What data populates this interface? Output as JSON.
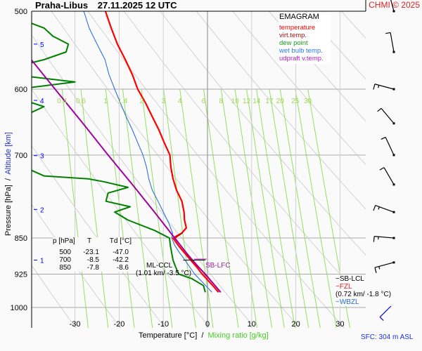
{
  "header": {
    "station": "Praha-Libus",
    "datetime": "27.11.2025 12 UTC",
    "copyright": "CHMI © 2025"
  },
  "legend": {
    "title": "EMAGRAM",
    "items": [
      {
        "label": "temperature",
        "color": "#ff0000"
      },
      {
        "label": "virt.temp.",
        "color": "#a01010"
      },
      {
        "label": "dew point",
        "color": "#008000"
      },
      {
        "label": "wet bulb temp.",
        "color": "#1e64dc"
      },
      {
        "label": "udpraft v.temp.",
        "color": "#a000a0"
      }
    ]
  },
  "colors": {
    "temperature": "#ff0000",
    "virt_temp": "#a01010",
    "dew_point": "#008000",
    "wet_bulb": "#1e64dc",
    "updraft": "#a000a0",
    "mixing_ratio": "#90e060",
    "altitude": "#0000ff",
    "grid": "#b4b4b4",
    "dry_adiabat": "#d2d2d2"
  },
  "table": {
    "headers": [
      "p [hPa]",
      "T",
      "Td [°C]"
    ],
    "rows": [
      [
        "500",
        "-23.1",
        "-47.0"
      ],
      [
        "700",
        "-8.5",
        "-42.2"
      ],
      [
        "850",
        "-7.8",
        "-8.6"
      ]
    ]
  },
  "annotations": {
    "ml_ccl": "ML-CCL",
    "ml_ccl_value": "(1.01 km/ -3.5 °C)",
    "sb_lfc": "SB-LFC",
    "sb_lcl": "SB-LCL",
    "fzl": "FZL",
    "fzl_value": "(0.72 km/ -1.8 °C)",
    "wbzl": "WBZL",
    "sfc": "SFC: 304 m ASL"
  },
  "chart_data": {
    "type": "line",
    "title": "Praha-Libus 27.11.2025 12 UTC",
    "subtitle": "EMAGRAM",
    "xlabel": "Temperature [°C]",
    "xlabel2": "Mixing ratio [g/kg]",
    "ylabel": "Pressure [hPa]",
    "ylabel2": "Altitude [km]",
    "xlim": [
      -40,
      35
    ],
    "ylim": [
      1050,
      500
    ],
    "x_ticks": [
      -30,
      -20,
      -10,
      0,
      10,
      20,
      30
    ],
    "y_ticks": [
      500,
      600,
      700,
      850,
      925,
      1000
    ],
    "altitude_ticks": [
      {
        "km": 1,
        "p": 895
      },
      {
        "km": 2,
        "p": 795
      },
      {
        "km": 3,
        "p": 701
      },
      {
        "km": 4,
        "p": 616
      },
      {
        "km": 5,
        "p": 540
      }
    ],
    "mixing_ratio_labels": [
      "0.4",
      "0.6",
      "1",
      "1.4",
      "2",
      "3",
      "4",
      "6",
      "8",
      "10",
      "12",
      "14",
      "17",
      "20",
      "25",
      "30"
    ],
    "mixing_ratio_values": [
      0.4,
      0.6,
      1,
      1.4,
      2,
      3,
      4,
      6,
      8,
      10,
      12,
      14,
      17,
      20,
      25,
      30
    ],
    "series": [
      {
        "name": "temperature",
        "p": [
          965,
          950,
          935,
          925,
          910,
          895,
          880,
          865,
          850,
          840,
          830,
          815,
          800,
          780,
          760,
          740,
          720,
          700,
          680,
          660,
          640,
          620,
          600,
          580,
          560,
          540,
          520,
          500
        ],
        "t": [
          2.5,
          1.2,
          -0.2,
          -1.2,
          -2.4,
          -3.8,
          -5.2,
          -6.6,
          -7.8,
          -5.8,
          -4.8,
          -5.2,
          -5.3,
          -5.8,
          -7.0,
          -7.8,
          -8.3,
          -8.5,
          -9.8,
          -11.0,
          -12.5,
          -14.0,
          -15.8,
          -17.0,
          -18.6,
          -20.4,
          -21.8,
          -23.1
        ]
      },
      {
        "name": "virt.temp.",
        "p": [
          965,
          950,
          935,
          925,
          910,
          895,
          880,
          865,
          850,
          840
        ],
        "t": [
          3.0,
          1.7,
          0.3,
          -0.7,
          -1.9,
          -3.3,
          -4.7,
          -6.1,
          -7.3,
          -5.6
        ]
      },
      {
        "name": "dew point",
        "p": [
          965,
          950,
          935,
          925,
          910,
          895,
          880,
          865,
          850,
          835,
          815,
          800,
          790,
          780,
          765,
          755,
          745,
          740,
          735,
          725,
          700,
          680,
          660,
          640,
          625,
          615,
          610,
          600,
          590,
          580,
          570,
          560,
          550,
          540,
          530,
          520,
          510,
          500
        ],
        "t": [
          -0.5,
          -0.9,
          -3.5,
          -6.5,
          -7.2,
          -7.8,
          -8.1,
          -8.4,
          -8.6,
          -12.0,
          -18.0,
          -21.0,
          -17.5,
          -23.0,
          -22.5,
          -18.0,
          -23.5,
          -27.0,
          -37.0,
          -40.0,
          -42.2,
          -43.5,
          -43.0,
          -42.0,
          -37.0,
          -42.0,
          -40.0,
          -43.0,
          -30.0,
          -44.0,
          -44.0,
          -37.0,
          -32.0,
          -31.5,
          -35.0,
          -37.0,
          -42.0,
          -47.0
        ]
      },
      {
        "name": "wet bulb temp.",
        "p": [
          965,
          950,
          935,
          925,
          910,
          895,
          880,
          865,
          850,
          840,
          820,
          800,
          780,
          760,
          740,
          720,
          700,
          680,
          660,
          640,
          620,
          600,
          580,
          560,
          540,
          520,
          500
        ],
        "t": [
          1.0,
          -0.4,
          -1.9,
          -2.9,
          -4.0,
          -5.1,
          -6.3,
          -7.4,
          -8.1,
          -7.9,
          -8.8,
          -10.0,
          -11.2,
          -12.5,
          -13.3,
          -13.8,
          -14.6,
          -15.8,
          -17.0,
          -18.4,
          -19.7,
          -21.0,
          -22.3,
          -23.2,
          -25.0,
          -26.8,
          -28.0
        ]
      },
      {
        "name": "udpraft v.temp.",
        "p": [
          965,
          925,
          895,
          850,
          800,
          750,
          700,
          650,
          600,
          550,
          500
        ],
        "t": [
          3.0,
          -0.5,
          -3.5,
          -7.4,
          -12.0,
          -17.0,
          -22.5,
          -28.2,
          -34.5,
          -41.3,
          -48.7
        ]
      }
    ],
    "wind_barbs": [
      {
        "p": 500,
        "dir": 345,
        "speed_kt": 10
      },
      {
        "p": 550,
        "dir": 350,
        "speed_kt": 10
      },
      {
        "p": 600,
        "dir": 285,
        "speed_kt": 15
      },
      {
        "p": 650,
        "dir": 320,
        "speed_kt": 10
      },
      {
        "p": 700,
        "dir": 335,
        "speed_kt": 10
      },
      {
        "p": 750,
        "dir": 330,
        "speed_kt": 10
      },
      {
        "p": 800,
        "dir": 290,
        "speed_kt": 15
      },
      {
        "p": 850,
        "dir": 275,
        "speed_kt": 15
      },
      {
        "p": 900,
        "dir": 255,
        "speed_kt": 15
      },
      {
        "p": 950,
        "dir": 255,
        "speed_kt": 15
      },
      {
        "p": 990,
        "dir": 225,
        "speed_kt": 10
      }
    ]
  }
}
